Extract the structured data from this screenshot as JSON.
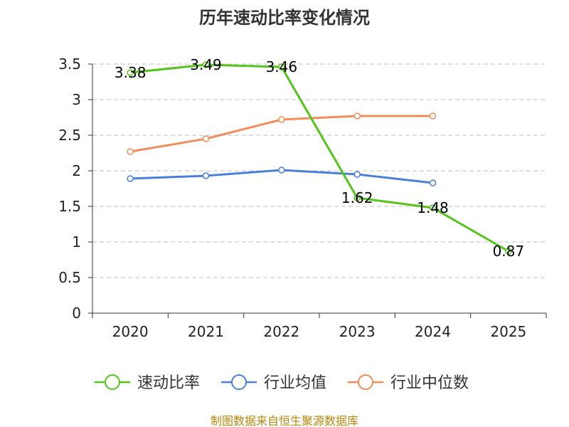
{
  "chart_data": {
    "type": "line",
    "title": "历年速动比率变化情况",
    "categories": [
      "2020",
      "2021",
      "2022",
      "2023",
      "2024",
      "2025"
    ],
    "ylim": [
      0,
      3.5
    ],
    "yticks": [
      "0",
      "0.5",
      "1",
      "1.5",
      "2",
      "2.5",
      "3",
      "3.5"
    ],
    "grid": true,
    "legend_position": "bottom",
    "series": [
      {
        "name": "速动比率",
        "color": "#52c41a",
        "values": [
          3.38,
          3.49,
          3.46,
          1.62,
          1.48,
          0.87
        ],
        "labels": [
          "3.38",
          "3.49",
          "3.46",
          "1.62",
          "1.48",
          "0.87"
        ]
      },
      {
        "name": "行业均值",
        "color": "#4a7fdc",
        "values": [
          1.89,
          1.93,
          2.01,
          1.95,
          1.83,
          null
        ]
      },
      {
        "name": "行业中位数",
        "color": "#f28c5a",
        "values": [
          2.27,
          2.45,
          2.72,
          2.77,
          2.77,
          null
        ]
      }
    ],
    "source": "制图数据来自恒生聚源数据库"
  }
}
